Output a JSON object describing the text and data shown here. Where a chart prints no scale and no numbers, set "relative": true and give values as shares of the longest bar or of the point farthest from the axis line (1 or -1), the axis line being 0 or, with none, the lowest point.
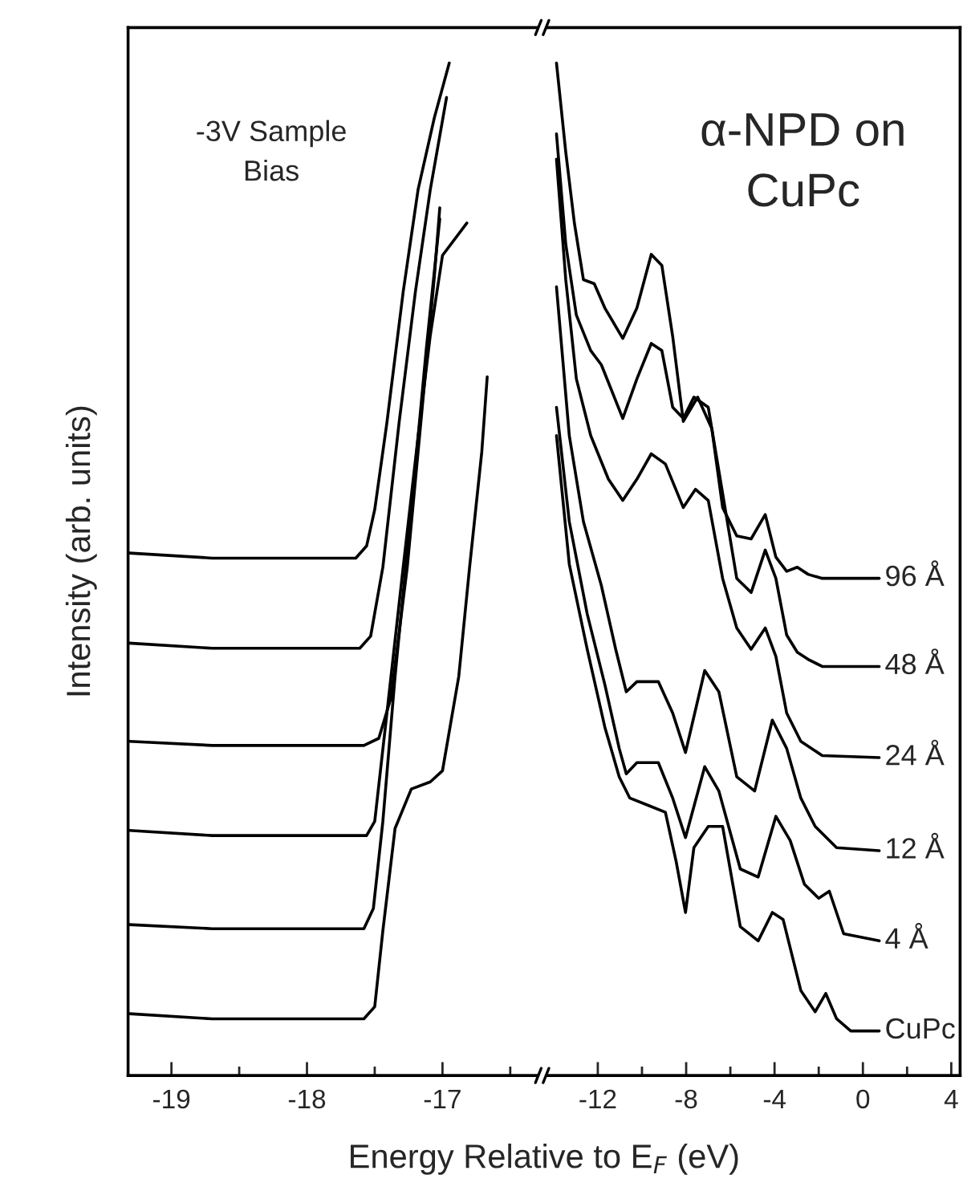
{
  "chart_data": [
    {
      "type": "line",
      "relative": true,
      "ylabel": "Intensity (arb. units)",
      "xlabel": "Energy Relative to E$_{F}$ (eV)",
      "xlim": [
        -19.32,
        -16.3
      ],
      "xticks": [
        -19,
        {
          "value": -18.5,
          "label": null
        },
        -18,
        {
          "value": -17.5,
          "label": null
        },
        -17,
        {
          "value": -16.5,
          "label": null
        }
      ],
      "tick_labels": "x",
      "grid": false,
      "legend": false,
      "marker": "none",
      "line_style": "solid",
      "annotations": [
        "-3V Sample\nBias"
      ],
      "series": [
        {
          "color": "#000000",
          "x": [
            -19.31,
            -18.7,
            -17.64,
            -17.56,
            -17.5,
            -17.41,
            -17.29,
            -17.18,
            -17.06,
            -16.95
          ],
          "values": [
            0.516,
            0.511,
            0.511,
            0.523,
            0.559,
            0.645,
            0.774,
            0.875,
            0.946,
            1.0
          ]
        },
        {
          "color": "#000000",
          "x": [
            -19.31,
            -18.7,
            -17.61,
            -17.53,
            -17.44,
            -17.32,
            -17.2,
            -17.09,
            -16.97
          ],
          "values": [
            0.427,
            0.422,
            0.422,
            0.434,
            0.502,
            0.645,
            0.774,
            0.875,
            0.966
          ]
        },
        {
          "color": "#000000",
          "x": [
            -19.31,
            -18.7,
            -17.58,
            -17.47,
            -17.38,
            -17.26,
            -17.15,
            -17.06,
            -17.02
          ],
          "values": [
            0.33,
            0.326,
            0.326,
            0.333,
            0.373,
            0.502,
            0.659,
            0.789,
            0.857
          ]
        },
        {
          "color": "#000000",
          "x": [
            -19.31,
            -18.7,
            -17.56,
            -17.5,
            -17.41,
            -17.29,
            -17.18,
            -17.09,
            -17.0,
            -16.82
          ],
          "values": [
            0.242,
            0.237,
            0.237,
            0.251,
            0.358,
            0.502,
            0.631,
            0.731,
            0.81,
            0.842
          ]
        },
        {
          "color": "#000000",
          "x": [
            -19.31,
            -18.7,
            -17.58,
            -17.51,
            -17.44,
            -17.35,
            -17.23,
            -17.12,
            -17.02
          ],
          "values": [
            0.149,
            0.145,
            0.145,
            0.165,
            0.251,
            0.394,
            0.559,
            0.717,
            0.846
          ]
        },
        {
          "color": "#000000",
          "x": [
            -19.31,
            -18.7,
            -17.58,
            -17.5,
            -17.44,
            -17.35,
            -17.23,
            -17.09,
            -17.0,
            -16.88,
            -16.8,
            -16.71,
            -16.67
          ],
          "values": [
            0.061,
            0.056,
            0.056,
            0.068,
            0.143,
            0.244,
            0.283,
            0.29,
            0.301,
            0.394,
            0.502,
            0.616,
            0.69
          ]
        }
      ]
    },
    {
      "type": "line",
      "relative": true,
      "xlim": [
        -14.3,
        4.4
      ],
      "xticks": [
        -12,
        {
          "value": -10,
          "label": null
        },
        -8,
        {
          "value": -6,
          "label": null
        },
        -4,
        {
          "value": -2,
          "label": null
        },
        0,
        {
          "value": 2,
          "label": null
        },
        4
      ],
      "tick_labels": "x",
      "grid": false,
      "legend": false,
      "marker": "none",
      "line_style": "solid",
      "annotations": [
        "α-NPD on\nCuPc"
      ],
      "series": [
        {
          "name": "96 Å",
          "color": "#000000",
          "x": [
            -13.87,
            -13.45,
            -13.06,
            -12.65,
            -12.16,
            -11.68,
            -10.87,
            -10.23,
            -9.58,
            -9.1,
            -8.61,
            -8.13,
            -7.48,
            -6.84,
            -6.35,
            -5.71,
            -5.06,
            -4.42,
            -3.94,
            -3.45,
            -2.97,
            -2.48,
            -1.84,
            0.74
          ],
          "values": [
            1.0,
            0.912,
            0.842,
            0.786,
            0.782,
            0.758,
            0.728,
            0.758,
            0.811,
            0.8,
            0.73,
            0.646,
            0.67,
            0.639,
            0.561,
            0.533,
            0.53,
            0.554,
            0.512,
            0.498,
            0.502,
            0.495,
            0.491,
            0.491
          ]
        },
        {
          "name": "48 Å",
          "color": "#000000",
          "x": [
            -13.87,
            -13.45,
            -12.97,
            -12.32,
            -11.84,
            -10.87,
            -10.23,
            -9.58,
            -9.1,
            -8.61,
            -8.13,
            -7.65,
            -7.0,
            -6.35,
            -5.71,
            -5.06,
            -4.42,
            -3.94,
            -3.45,
            -2.97,
            -2.48,
            -1.84,
            0.74
          ],
          "values": [
            0.93,
            0.821,
            0.751,
            0.716,
            0.702,
            0.649,
            0.688,
            0.723,
            0.716,
            0.66,
            0.649,
            0.67,
            0.66,
            0.575,
            0.491,
            0.477,
            0.519,
            0.491,
            0.435,
            0.418,
            0.411,
            0.404,
            0.404
          ]
        },
        {
          "name": "24 Å",
          "color": "#000000",
          "x": [
            -13.87,
            -13.45,
            -12.97,
            -12.32,
            -11.52,
            -10.87,
            -10.23,
            -9.58,
            -8.94,
            -8.13,
            -7.58,
            -7.0,
            -6.35,
            -5.71,
            -5.06,
            -4.42,
            -3.94,
            -3.45,
            -2.81,
            -1.84,
            0.74
          ],
          "values": [
            0.905,
            0.786,
            0.688,
            0.632,
            0.589,
            0.568,
            0.589,
            0.614,
            0.604,
            0.561,
            0.579,
            0.568,
            0.491,
            0.442,
            0.421,
            0.442,
            0.414,
            0.358,
            0.33,
            0.316,
            0.314
          ]
        },
        {
          "name": "12 Å",
          "color": "#000000",
          "x": [
            -13.87,
            -13.29,
            -12.65,
            -11.84,
            -11.19,
            -10.71,
            -10.23,
            -9.26,
            -8.61,
            -8.03,
            -7.16,
            -6.52,
            -5.71,
            -4.9,
            -4.1,
            -3.45,
            -2.81,
            -2.16,
            -1.19,
            0.74
          ],
          "values": [
            0.779,
            0.632,
            0.547,
            0.484,
            0.421,
            0.379,
            0.389,
            0.389,
            0.358,
            0.319,
            0.4,
            0.379,
            0.295,
            0.281,
            0.351,
            0.323,
            0.274,
            0.246,
            0.225,
            0.222
          ]
        },
        {
          "name": "4 Å",
          "color": "#000000",
          "x": [
            -13.87,
            -13.29,
            -12.48,
            -11.68,
            -11.03,
            -10.71,
            -10.23,
            -9.26,
            -8.61,
            -8.03,
            -7.16,
            -6.52,
            -5.55,
            -4.74,
            -3.94,
            -3.29,
            -2.65,
            -2.0,
            -1.52,
            -0.87,
            0.74
          ],
          "values": [
            0.66,
            0.547,
            0.456,
            0.386,
            0.323,
            0.298,
            0.309,
            0.309,
            0.274,
            0.235,
            0.305,
            0.281,
            0.204,
            0.196,
            0.256,
            0.232,
            0.189,
            0.175,
            0.182,
            0.14,
            0.133
          ]
        },
        {
          "name": "CuPc",
          "color": "#000000",
          "x": [
            -13.87,
            -13.29,
            -12.48,
            -11.68,
            -11.03,
            -10.55,
            -9.74,
            -8.94,
            -8.45,
            -8.03,
            -7.65,
            -7.0,
            -6.35,
            -5.55,
            -4.74,
            -4.1,
            -3.61,
            -2.81,
            -2.16,
            -1.68,
            -1.19,
            -0.55,
            0.74
          ],
          "values": [
            0.632,
            0.505,
            0.421,
            0.344,
            0.295,
            0.274,
            0.267,
            0.26,
            0.211,
            0.161,
            0.225,
            0.246,
            0.246,
            0.147,
            0.133,
            0.161,
            0.154,
            0.084,
            0.063,
            0.081,
            0.056,
            0.044,
            0.044
          ]
        }
      ]
    }
  ]
}
